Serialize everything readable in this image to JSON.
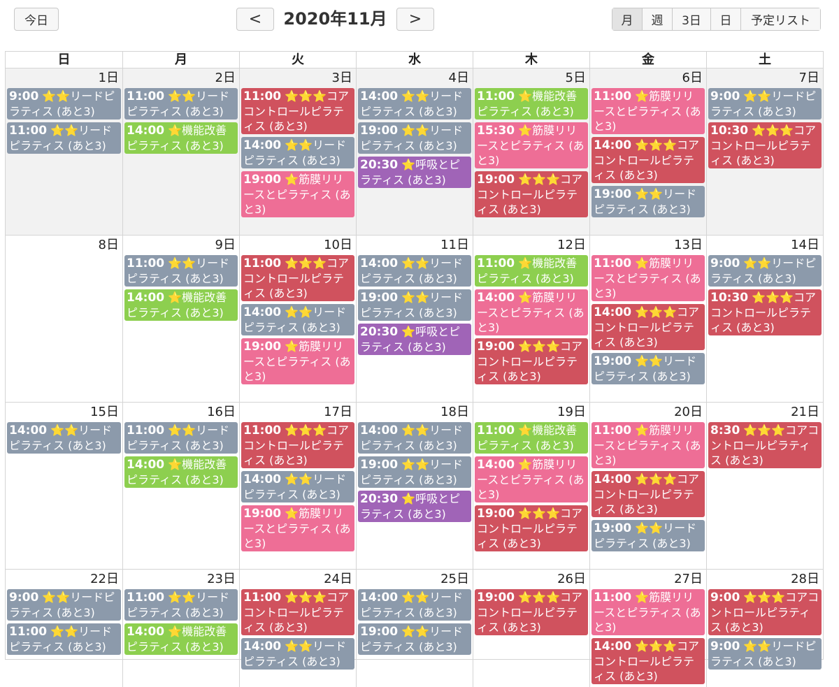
{
  "toolbar": {
    "today_label": "今日",
    "prev_label": "<",
    "next_label": ">",
    "title": "2020年11月",
    "views": [
      "月",
      "週",
      "3日",
      "日",
      "予定リスト"
    ]
  },
  "colors": {
    "gray": "#8c9aab",
    "green": "#8dcf4f",
    "red": "#d0525e",
    "pink": "#ee6e96",
    "purple": "#a064b7"
  },
  "weekdays": [
    "日",
    "月",
    "火",
    "水",
    "木",
    "金",
    "土"
  ],
  "weeks": [
    [
      {
        "label": "1日",
        "other": true,
        "events": [
          {
            "time": "9:00",
            "text": "⭐⭐リードピラティス (あと3)",
            "color": "gray"
          },
          {
            "time": "11:00",
            "text": "⭐⭐リードピラティス (あと3)",
            "color": "gray"
          }
        ]
      },
      {
        "label": "2日",
        "other": true,
        "events": [
          {
            "time": "11:00",
            "text": "⭐⭐リードピラティス (あと3)",
            "color": "gray"
          },
          {
            "time": "14:00",
            "text": "⭐機能改善ピラティス (あと3)",
            "color": "green"
          }
        ]
      },
      {
        "label": "3日",
        "other": true,
        "events": [
          {
            "time": "11:00",
            "text": "⭐⭐⭐コアコントロールピラティス (あと3)",
            "color": "red"
          },
          {
            "time": "14:00",
            "text": "⭐⭐リードピラティス (あと3)",
            "color": "gray"
          },
          {
            "time": "19:00",
            "text": "⭐筋膜リリースとピラティス (あと3)",
            "color": "pink"
          }
        ]
      },
      {
        "label": "4日",
        "other": true,
        "events": [
          {
            "time": "14:00",
            "text": "⭐⭐リードピラティス (あと3)",
            "color": "gray"
          },
          {
            "time": "19:00",
            "text": "⭐⭐リードピラティス (あと3)",
            "color": "gray"
          },
          {
            "time": "20:30",
            "text": "⭐呼吸とピラティス (あと3)",
            "color": "purple"
          }
        ]
      },
      {
        "label": "5日",
        "other": true,
        "events": [
          {
            "time": "11:00",
            "text": "⭐機能改善ピラティス (あと3)",
            "color": "green"
          },
          {
            "time": "15:30",
            "text": "⭐筋膜リリースとピラティス (あと3)",
            "color": "pink"
          },
          {
            "time": "19:00",
            "text": "⭐⭐⭐コアコントロールピラティス (あと3)",
            "color": "red"
          }
        ]
      },
      {
        "label": "6日",
        "other": true,
        "events": [
          {
            "time": "11:00",
            "text": "⭐筋膜リリースとピラティス (あと3)",
            "color": "pink"
          },
          {
            "time": "14:00",
            "text": "⭐⭐⭐コアコントロールピラティス (あと3)",
            "color": "red"
          },
          {
            "time": "19:00",
            "text": "⭐⭐リードピラティス (あと3)",
            "color": "gray"
          }
        ]
      },
      {
        "label": "7日",
        "other": true,
        "events": [
          {
            "time": "9:00",
            "text": "⭐⭐リードピラティス (あと3)",
            "color": "gray"
          },
          {
            "time": "10:30",
            "text": "⭐⭐⭐コアコントロールピラティス (あと3)",
            "color": "red"
          }
        ]
      }
    ],
    [
      {
        "label": "8日",
        "other": false,
        "events": []
      },
      {
        "label": "9日",
        "other": false,
        "events": [
          {
            "time": "11:00",
            "text": "⭐⭐リードピラティス (あと3)",
            "color": "gray"
          },
          {
            "time": "14:00",
            "text": "⭐機能改善ピラティス (あと3)",
            "color": "green"
          }
        ]
      },
      {
        "label": "10日",
        "other": false,
        "events": [
          {
            "time": "11:00",
            "text": "⭐⭐⭐コアコントロールピラティス (あと3)",
            "color": "red"
          },
          {
            "time": "14:00",
            "text": "⭐⭐リードピラティス (あと3)",
            "color": "gray"
          },
          {
            "time": "19:00",
            "text": "⭐筋膜リリースとピラティス (あと3)",
            "color": "pink"
          }
        ]
      },
      {
        "label": "11日",
        "other": false,
        "events": [
          {
            "time": "14:00",
            "text": "⭐⭐リードピラティス (あと3)",
            "color": "gray"
          },
          {
            "time": "19:00",
            "text": "⭐⭐リードピラティス (あと3)",
            "color": "gray"
          },
          {
            "time": "20:30",
            "text": "⭐呼吸とピラティス (あと3)",
            "color": "purple"
          }
        ]
      },
      {
        "label": "12日",
        "other": false,
        "events": [
          {
            "time": "11:00",
            "text": "⭐機能改善ピラティス (あと3)",
            "color": "green"
          },
          {
            "time": "14:00",
            "text": "⭐筋膜リリースとピラティス (あと3)",
            "color": "pink"
          },
          {
            "time": "19:00",
            "text": "⭐⭐⭐コアコントロールピラティス (あと3)",
            "color": "red"
          }
        ]
      },
      {
        "label": "13日",
        "other": false,
        "events": [
          {
            "time": "11:00",
            "text": "⭐筋膜リリースとピラティス (あと3)",
            "color": "pink"
          },
          {
            "time": "14:00",
            "text": "⭐⭐⭐コアコントロールピラティス (あと3)",
            "color": "red"
          },
          {
            "time": "19:00",
            "text": "⭐⭐リードピラティス (あと3)",
            "color": "gray"
          }
        ]
      },
      {
        "label": "14日",
        "other": false,
        "events": [
          {
            "time": "9:00",
            "text": "⭐⭐リードピラティス (あと3)",
            "color": "gray"
          },
          {
            "time": "10:30",
            "text": "⭐⭐⭐コアコントロールピラティス (あと3)",
            "color": "red"
          }
        ]
      }
    ],
    [
      {
        "label": "15日",
        "other": false,
        "events": [
          {
            "time": "14:00",
            "text": "⭐⭐リードピラティス (あと3)",
            "color": "gray"
          }
        ]
      },
      {
        "label": "16日",
        "other": false,
        "events": [
          {
            "time": "11:00",
            "text": "⭐⭐リードピラティス (あと3)",
            "color": "gray"
          },
          {
            "time": "14:00",
            "text": "⭐機能改善ピラティス (あと3)",
            "color": "green"
          }
        ]
      },
      {
        "label": "17日",
        "other": false,
        "events": [
          {
            "time": "11:00",
            "text": "⭐⭐⭐コアコントロールピラティス (あと3)",
            "color": "red"
          },
          {
            "time": "14:00",
            "text": "⭐⭐リードピラティス (あと3)",
            "color": "gray"
          },
          {
            "time": "19:00",
            "text": "⭐筋膜リリースとピラティス (あと3)",
            "color": "pink"
          }
        ]
      },
      {
        "label": "18日",
        "other": false,
        "events": [
          {
            "time": "14:00",
            "text": "⭐⭐リードピラティス (あと3)",
            "color": "gray"
          },
          {
            "time": "19:00",
            "text": "⭐⭐リードピラティス (あと3)",
            "color": "gray"
          },
          {
            "time": "20:30",
            "text": "⭐呼吸とピラティス (あと3)",
            "color": "purple"
          }
        ]
      },
      {
        "label": "19日",
        "other": false,
        "events": [
          {
            "time": "11:00",
            "text": "⭐機能改善ピラティス (あと3)",
            "color": "green"
          },
          {
            "time": "14:00",
            "text": "⭐筋膜リリースとピラティス (あと3)",
            "color": "pink"
          },
          {
            "time": "19:00",
            "text": "⭐⭐⭐コアコントロールピラティス (あと3)",
            "color": "red"
          }
        ]
      },
      {
        "label": "20日",
        "other": false,
        "events": [
          {
            "time": "11:00",
            "text": "⭐筋膜リリースとピラティス (あと3)",
            "color": "pink"
          },
          {
            "time": "14:00",
            "text": "⭐⭐⭐コアコントロールピラティス (あと3)",
            "color": "red"
          },
          {
            "time": "19:00",
            "text": "⭐⭐リードピラティス (あと3)",
            "color": "gray"
          }
        ]
      },
      {
        "label": "21日",
        "other": false,
        "events": [
          {
            "time": "8:30",
            "text": "⭐⭐⭐コアコントロールピラティス (あと3)",
            "color": "red"
          }
        ]
      }
    ],
    [
      {
        "label": "22日",
        "other": false,
        "events": [
          {
            "time": "9:00",
            "text": "⭐⭐リードピラティス (あと3)",
            "color": "gray"
          },
          {
            "time": "11:00",
            "text": "⭐⭐リードピラティス (あと3)",
            "color": "gray"
          }
        ]
      },
      {
        "label": "23日",
        "other": false,
        "events": [
          {
            "time": "11:00",
            "text": "⭐⭐リードピラティス (あと3)",
            "color": "gray"
          },
          {
            "time": "14:00",
            "text": "⭐機能改善ピラティス (あと3)",
            "color": "green"
          }
        ]
      },
      {
        "label": "24日",
        "other": false,
        "events": [
          {
            "time": "11:00",
            "text": "⭐⭐⭐コアコントロールピラティス (あと3)",
            "color": "red"
          },
          {
            "time": "14:00",
            "text": "⭐⭐リードピラティス (あと3)",
            "color": "gray"
          }
        ]
      },
      {
        "label": "25日",
        "other": false,
        "events": [
          {
            "time": "14:00",
            "text": "⭐⭐リードピラティス (あと3)",
            "color": "gray"
          },
          {
            "time": "19:00",
            "text": "⭐⭐リードピラティス (あと3)",
            "color": "gray"
          }
        ]
      },
      {
        "label": "26日",
        "other": false,
        "events": [
          {
            "time": "19:00",
            "text": "⭐⭐⭐コアコントロールピラティス (あと3)",
            "color": "red"
          }
        ]
      },
      {
        "label": "27日",
        "other": false,
        "events": [
          {
            "time": "11:00",
            "text": "⭐筋膜リリースとピラティス (あと3)",
            "color": "pink"
          },
          {
            "time": "14:00",
            "text": "⭐⭐⭐コアコントロールピラティス (あと3)",
            "color": "red"
          }
        ]
      },
      {
        "label": "28日",
        "other": false,
        "events": [
          {
            "time": "9:00",
            "text": "⭐⭐⭐コアコントロールピラティス (あと3)",
            "color": "red"
          },
          {
            "time": "9:00",
            "text": "⭐⭐リードピラティス (あと3)",
            "color": "gray"
          }
        ]
      }
    ]
  ]
}
